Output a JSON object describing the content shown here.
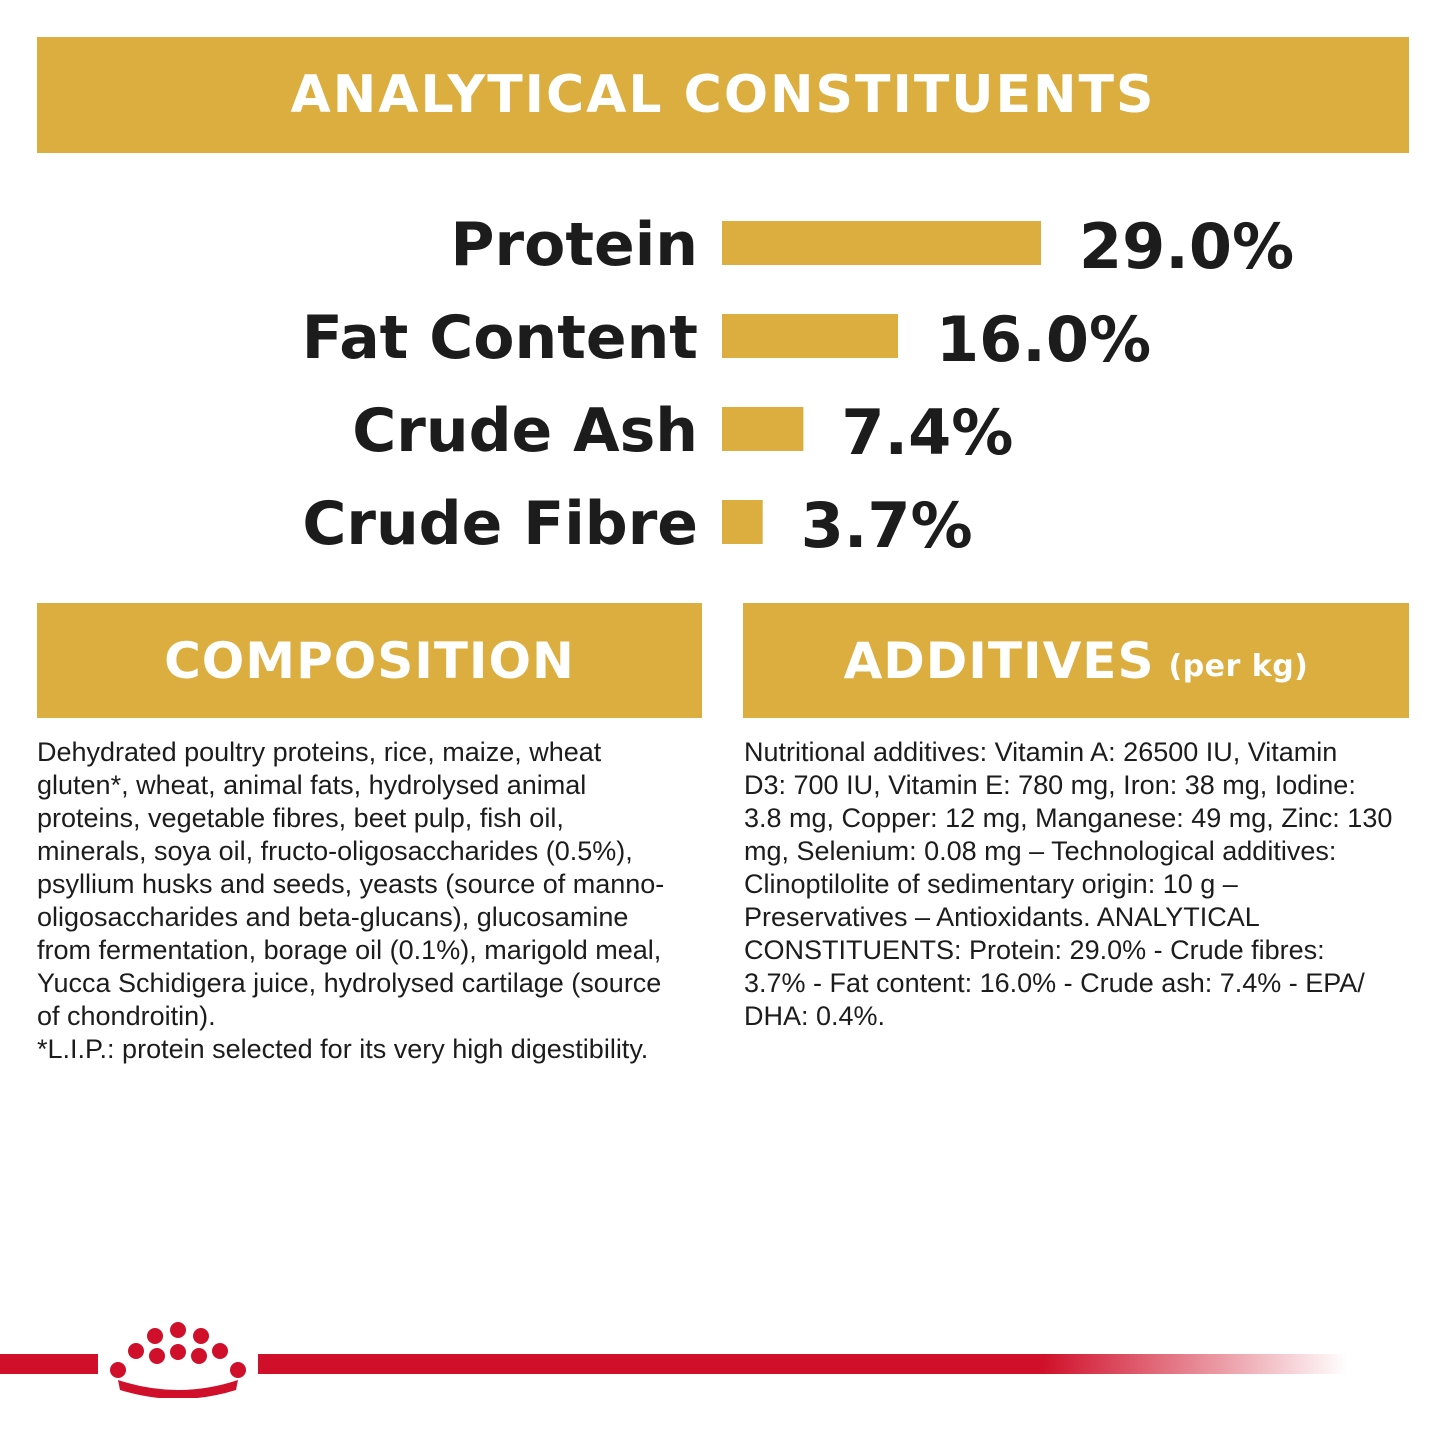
{
  "header": {
    "title": "ANALYTICAL CONSTITUENTS"
  },
  "chart_data": {
    "type": "bar",
    "orientation": "horizontal",
    "categories": [
      "Protein",
      "Fat Content",
      "Crude Ash",
      "Crude Fibre"
    ],
    "values": [
      29.0,
      16.0,
      7.4,
      3.7
    ],
    "value_labels": [
      "29.0%",
      "16.0%",
      "7.4%",
      "3.7%"
    ],
    "unit": "%",
    "bar_color": "#dcae3f",
    "grid": false,
    "legend": "none"
  },
  "composition": {
    "title": "COMPOSITION",
    "lines": [
      "Dehydrated poultry proteins, rice, maize, wheat",
      "gluten*, wheat, animal fats, hydrolysed animal",
      "proteins, vegetable fibres, beet pulp, fish oil,",
      "minerals, soya oil, fructo-oligosaccharides (0.5%),",
      "psyllium husks and seeds, yeasts (source of manno-",
      "oligosaccharides and beta-glucans), glucosamine",
      "from fermentation, borage oil (0.1%), marigold meal,",
      "Yucca Schidigera juice, hydrolysed cartilage (source",
      "of chondroitin).",
      "*L.I.P.: protein selected for its very high digestibility."
    ]
  },
  "additives": {
    "title": "ADDITIVES",
    "subtitle": "(per kg)",
    "lines": [
      "Nutritional additives: Vitamin A: 26500 IU, Vitamin",
      "D3: 700 IU, Vitamin E: 780 mg, Iron: 38 mg, Iodine:",
      "3.8 mg, Copper: 12 mg, Manganese: 49 mg, Zinc: 130",
      "mg, Selenium: 0.08 mg – Technological additives:",
      "Clinoptilolite of sedimentary origin: 10 g –",
      "Preservatives – Antioxidants. ANALYTICAL",
      "CONSTITUENTS: Protein: 29.0% - Crude fibres:",
      "3.7% - Fat content: 16.0% - Crude ash: 7.4% - EPA/",
      "DHA: 0.4%."
    ]
  },
  "colors": {
    "accent": "#dcae3f",
    "text": "#1c1c1c",
    "brand_red": "#d0102a"
  },
  "footer": {
    "logo_icon": "crown-icon"
  }
}
